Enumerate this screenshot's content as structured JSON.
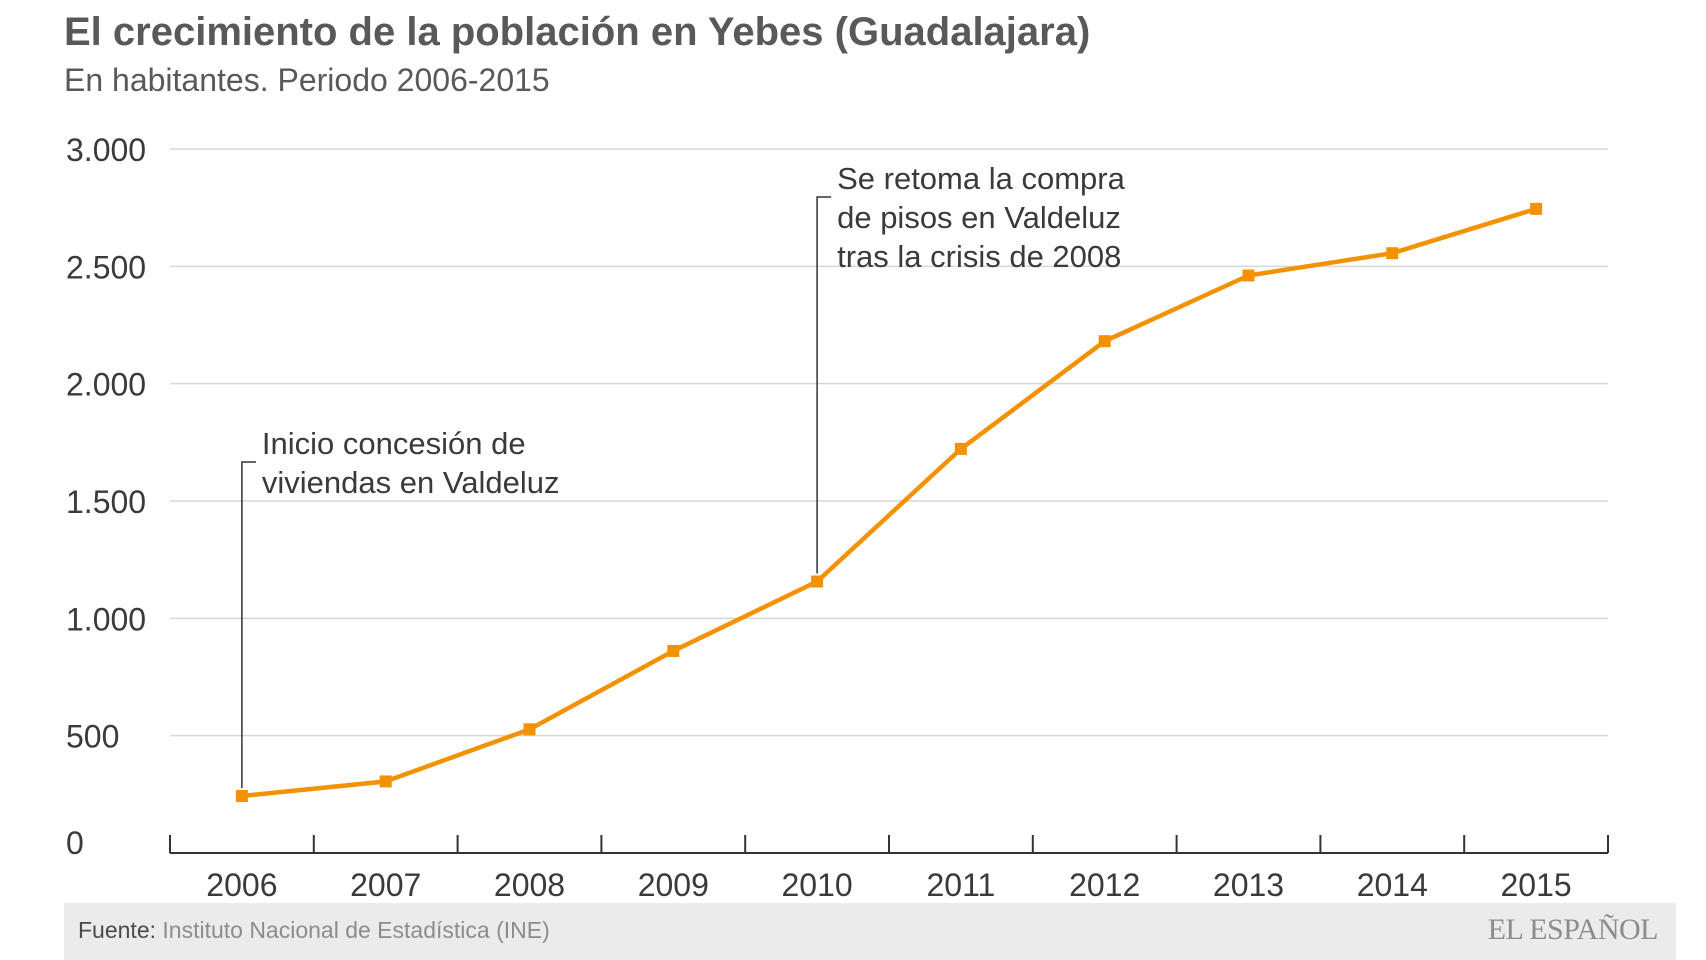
{
  "chart_data": {
    "type": "line",
    "title": "El crecimiento de la población en Yebes (Guadalajara)",
    "subtitle": "En habitantes. Periodo 2006-2015",
    "categories": [
      "2006",
      "2007",
      "2008",
      "2009",
      "2010",
      "2011",
      "2012",
      "2013",
      "2014",
      "2015"
    ],
    "series": [
      {
        "values": [
          243,
          305,
          527,
          861,
          1157,
          1722,
          2181,
          2461,
          2556,
          2745
        ]
      }
    ],
    "ylim": [
      0,
      3000
    ],
    "yticks": [
      0,
      500,
      1000,
      1500,
      2000,
      2500,
      3000
    ],
    "ytick_labels": [
      "0",
      "500",
      "1.000",
      "1.500",
      "2.000",
      "2.500",
      "3.000"
    ],
    "grid": true,
    "line_color": "#f39200",
    "annotations": [
      {
        "category": "2006",
        "lines": [
          "Inicio concesión de",
          "viviendas en Valdeluz"
        ]
      },
      {
        "category": "2010",
        "lines": [
          "Se retoma la compra",
          "de pisos en Valdeluz",
          "tras la crisis de 2008"
        ]
      }
    ]
  },
  "source": {
    "label": "Fuente:",
    "text": " Instituto Nacional de Estadística (INE)"
  },
  "logo": "EL ESPAÑOL"
}
